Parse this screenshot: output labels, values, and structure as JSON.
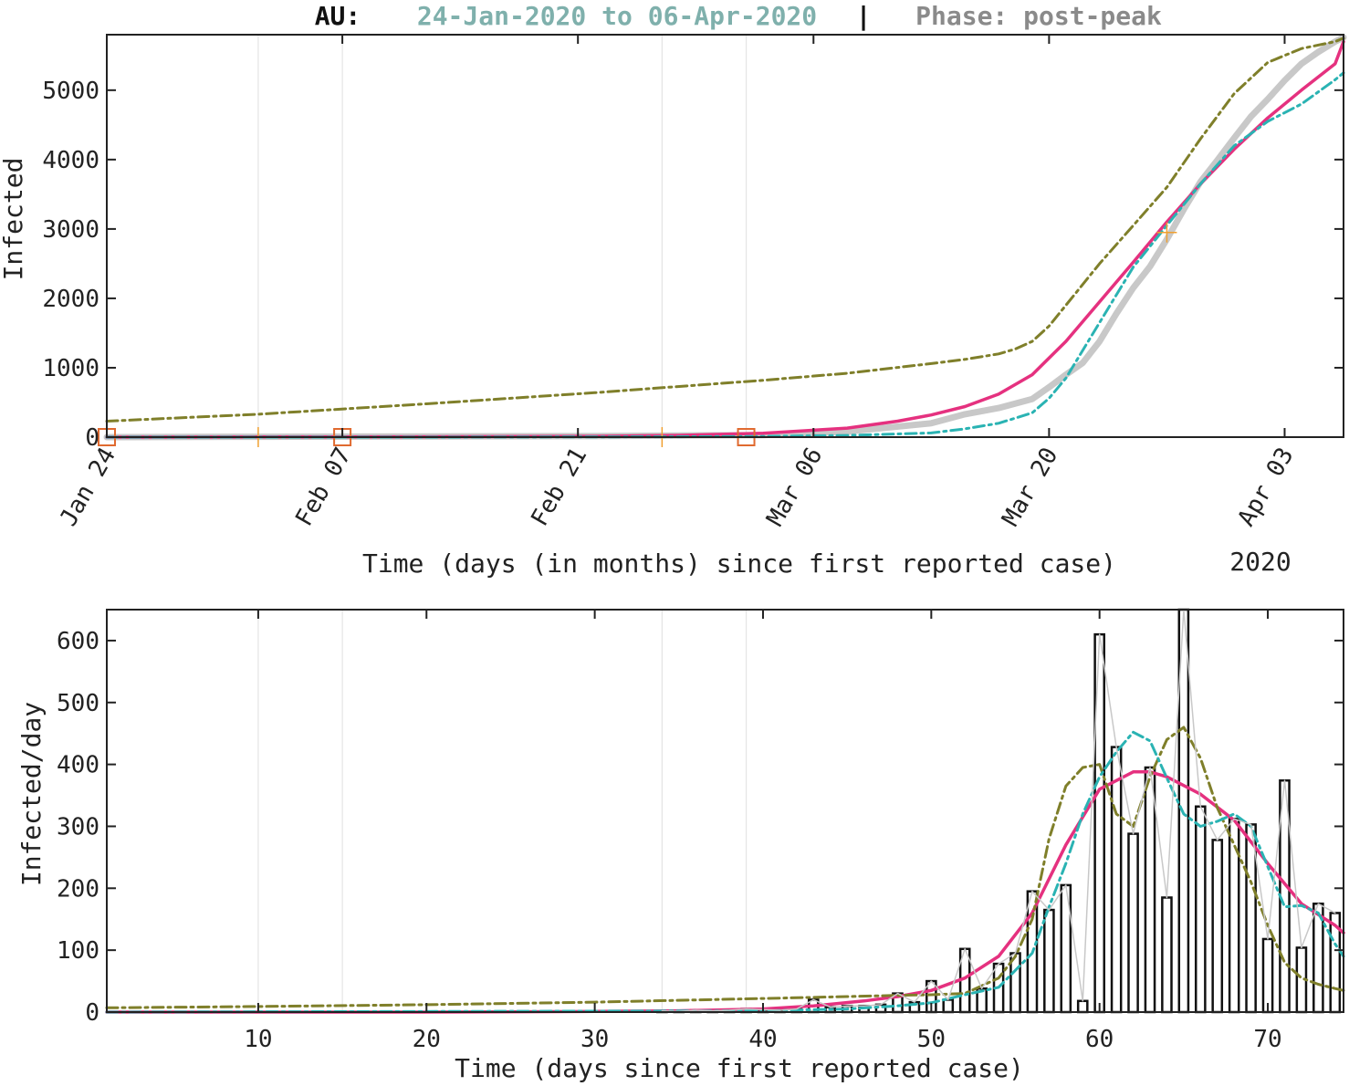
{
  "title": {
    "country": "AU:",
    "date_range": "24-Jan-2020 to  06-Apr-2020",
    "separator": "|",
    "phase": "Phase: post-peak"
  },
  "colors": {
    "country": "#111111",
    "date_range": "#7fb0ac",
    "phase": "#8a8a8a",
    "fit_main": "#e5317f",
    "fit_upper": "#7f7f2a",
    "fit_lower": "#2ab3b3",
    "observed": "#c8c8c8",
    "bars": "#111111",
    "markers": "#e06a30"
  },
  "chart_data": [
    {
      "id": "cumulative",
      "type": "line",
      "xlabel": "Time (days (in months) since first reported case)",
      "ylabel": "Infected",
      "year_label": "2020",
      "xlim": [
        1,
        74.5
      ],
      "ylim": [
        0,
        5800
      ],
      "x_ticks": [
        1,
        15,
        29,
        43,
        57,
        71
      ],
      "x_tick_labels": [
        "Jan 24",
        "Feb 07",
        "Feb 21",
        "Mar 06",
        "Mar 20",
        "Apr 03"
      ],
      "y_ticks": [
        0,
        1000,
        2000,
        3000,
        4000,
        5000
      ],
      "y_tick_labels": [
        "0",
        "1000",
        "2000",
        "3000",
        "4000",
        "5000"
      ],
      "grid_x": [
        10,
        15,
        34,
        39
      ],
      "square_markers": [
        {
          "x": 1,
          "y": 0
        },
        {
          "x": 15,
          "y": 0
        },
        {
          "x": 39,
          "y": 0
        }
      ],
      "plus_markers": [
        {
          "x": 10,
          "y": 0
        },
        {
          "x": 34,
          "y": 0
        },
        {
          "x": 64,
          "y": 2950
        }
      ],
      "series": [
        {
          "role": "observed",
          "x": [
            1,
            10,
            20,
            30,
            40,
            45,
            50,
            52,
            54,
            56,
            57,
            58,
            59,
            60,
            61,
            62,
            63,
            64,
            65,
            66,
            67,
            68,
            69,
            70,
            71,
            72,
            73,
            74,
            74.5
          ],
          "y": [
            0,
            5,
            10,
            15,
            30,
            80,
            200,
            330,
            420,
            550,
            720,
            900,
            1070,
            1380,
            1780,
            2150,
            2460,
            2850,
            3280,
            3680,
            3990,
            4310,
            4620,
            4870,
            5140,
            5380,
            5550,
            5700,
            5760
          ]
        },
        {
          "role": "fit_main",
          "x": [
            1,
            10,
            20,
            30,
            35,
            40,
            45,
            48,
            50,
            52,
            54,
            56,
            58,
            60,
            62,
            64,
            66,
            68,
            70,
            72,
            74,
            74.5
          ],
          "y": [
            0,
            2,
            5,
            12,
            25,
            55,
            130,
            230,
            320,
            440,
            620,
            900,
            1380,
            1950,
            2520,
            3100,
            3650,
            4150,
            4600,
            5000,
            5380,
            5700
          ]
        },
        {
          "role": "fit_upper",
          "x": [
            1,
            10,
            20,
            30,
            40,
            45,
            50,
            52,
            54,
            55,
            56,
            57,
            58,
            60,
            62,
            64,
            66,
            68,
            70,
            72,
            74,
            74.5
          ],
          "y": [
            230,
            330,
            480,
            640,
            820,
            920,
            1060,
            1120,
            1200,
            1270,
            1380,
            1600,
            1900,
            2500,
            3050,
            3600,
            4300,
            4950,
            5400,
            5600,
            5700,
            5750
          ]
        },
        {
          "role": "fit_lower",
          "x": [
            1,
            20,
            35,
            40,
            45,
            50,
            52,
            54,
            56,
            57,
            58,
            60,
            62,
            64,
            66,
            68,
            70,
            72,
            74,
            74.5
          ],
          "y": [
            0,
            0,
            5,
            10,
            25,
            60,
            120,
            200,
            350,
            560,
            850,
            1650,
            2450,
            3050,
            3650,
            4200,
            4550,
            4800,
            5150,
            5250
          ]
        }
      ]
    },
    {
      "id": "daily",
      "type": "bar",
      "xlabel": "Time (days since first reported case)",
      "ylabel": "Infected/day",
      "xlim": [
        1,
        74.5
      ],
      "ylim": [
        0,
        650
      ],
      "x_ticks": [
        10,
        20,
        30,
        40,
        50,
        60,
        70
      ],
      "x_tick_labels": [
        "10",
        "20",
        "30",
        "40",
        "50",
        "60",
        "70"
      ],
      "y_ticks": [
        0,
        100,
        200,
        300,
        400,
        500,
        600
      ],
      "y_tick_labels": [
        "0",
        "100",
        "200",
        "300",
        "400",
        "500",
        "600"
      ],
      "grid_x": [
        10,
        15,
        34,
        39
      ],
      "bars": {
        "x": [
          34,
          35,
          36,
          37,
          38,
          39,
          40,
          41,
          42,
          43,
          44,
          45,
          46,
          47,
          48,
          49,
          50,
          51,
          52,
          53,
          54,
          55,
          56,
          57,
          58,
          59,
          60,
          61,
          62,
          63,
          64,
          65,
          66,
          67,
          68,
          69,
          70,
          71,
          72,
          73,
          74
        ],
        "y": [
          2,
          1,
          3,
          2,
          3,
          5,
          4,
          3,
          5,
          20,
          8,
          10,
          10,
          12,
          30,
          16,
          50,
          20,
          102,
          38,
          78,
          95,
          195,
          165,
          205,
          18,
          610,
          428,
          288,
          395,
          185,
          650,
          332,
          278,
          312,
          303,
          118,
          374,
          104,
          175,
          160
        ]
      },
      "series": [
        {
          "role": "fit_main",
          "x": [
            1,
            10,
            20,
            30,
            35,
            40,
            43,
            46,
            48,
            50,
            52,
            54,
            56,
            58,
            60,
            62,
            63,
            64,
            66,
            68,
            70,
            72,
            74,
            74.5
          ],
          "y": [
            0,
            0,
            0,
            1,
            2,
            5,
            10,
            18,
            25,
            35,
            55,
            90,
            160,
            270,
            360,
            388,
            388,
            380,
            352,
            310,
            240,
            175,
            140,
            128
          ]
        },
        {
          "role": "fit_upper",
          "x": [
            1,
            10,
            20,
            30,
            40,
            45,
            48,
            50,
            52,
            54,
            55,
            56,
            57,
            58,
            59,
            60,
            61,
            62,
            63,
            64,
            65,
            66,
            67,
            68,
            69,
            70,
            71,
            72,
            73,
            74,
            74.5
          ],
          "y": [
            7,
            9,
            12,
            16,
            22,
            25,
            27,
            28,
            30,
            55,
            90,
            150,
            280,
            365,
            395,
            400,
            320,
            300,
            380,
            440,
            460,
            410,
            330,
            270,
            210,
            140,
            80,
            55,
            45,
            38,
            35
          ]
        },
        {
          "role": "fit_lower",
          "x": [
            1,
            40,
            45,
            48,
            50,
            52,
            54,
            56,
            57,
            58,
            59,
            60,
            61,
            62,
            63,
            64,
            65,
            66,
            67,
            68,
            69,
            70,
            71,
            72,
            73,
            74,
            74.5
          ],
          "y": [
            0,
            2,
            5,
            10,
            15,
            28,
            40,
            95,
            170,
            240,
            320,
            380,
            420,
            452,
            438,
            378,
            320,
            300,
            308,
            320,
            300,
            235,
            170,
            172,
            160,
            110,
            90
          ]
        },
        {
          "role": "observed",
          "x": [
            34,
            35,
            36,
            37,
            38,
            39,
            40,
            41,
            42,
            43,
            44,
            45,
            46,
            47,
            48,
            49,
            50,
            51,
            52,
            53,
            54,
            55,
            56,
            57,
            58,
            59,
            60,
            61,
            62,
            63,
            64,
            65,
            66,
            67,
            68,
            69,
            70,
            71,
            72,
            73,
            74
          ],
          "y": [
            2,
            1,
            3,
            2,
            3,
            5,
            4,
            3,
            5,
            20,
            8,
            10,
            10,
            12,
            30,
            16,
            50,
            20,
            102,
            38,
            78,
            95,
            195,
            165,
            205,
            18,
            610,
            428,
            288,
            395,
            185,
            650,
            332,
            278,
            312,
            303,
            118,
            374,
            104,
            175,
            160
          ]
        }
      ]
    }
  ]
}
